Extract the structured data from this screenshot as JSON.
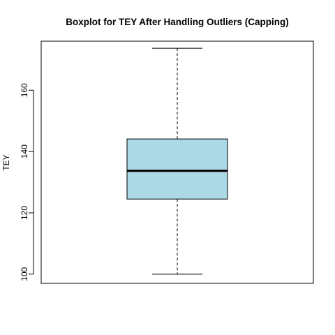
{
  "chart_data": {
    "type": "boxplot",
    "title": "Boxplot for TEY After Handling Outliers (Capping)",
    "xlabel": "",
    "ylabel": "TEY",
    "ylim": [
      97,
      176
    ],
    "yticks": [
      100,
      120,
      140,
      160
    ],
    "grid": false,
    "legend": "none",
    "box": {
      "whisker_low": 100.0,
      "q1": 124.5,
      "median": 133.7,
      "q3": 144.1,
      "whisker_high": 173.7
    },
    "colors": {
      "box_fill": "#add8e6",
      "stroke": "#000000"
    }
  }
}
